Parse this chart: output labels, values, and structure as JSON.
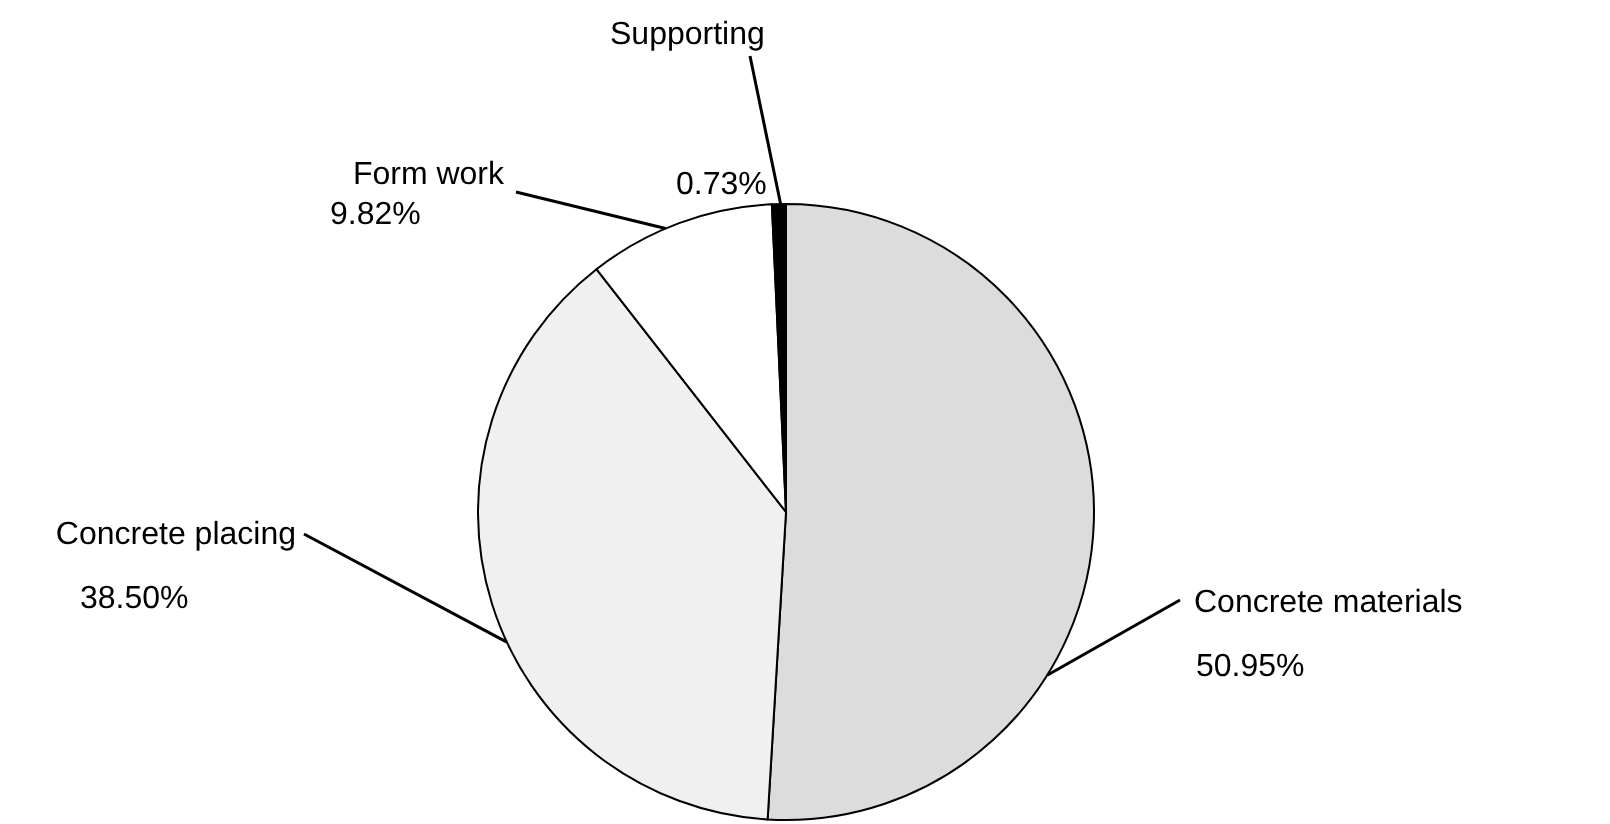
{
  "chart_data": {
    "type": "pie",
    "categories": [
      "Concrete materials",
      "Concrete placing",
      "Form work",
      "Supporting"
    ],
    "values": [
      50.95,
      38.5,
      9.82,
      0.73
    ],
    "colors": [
      "#dcdcdc",
      "#f0f0f0",
      "#ffffff",
      "#000000"
    ],
    "value_labels": [
      "50.95%",
      "38.50%",
      "9.82%",
      "0.73%"
    ]
  }
}
